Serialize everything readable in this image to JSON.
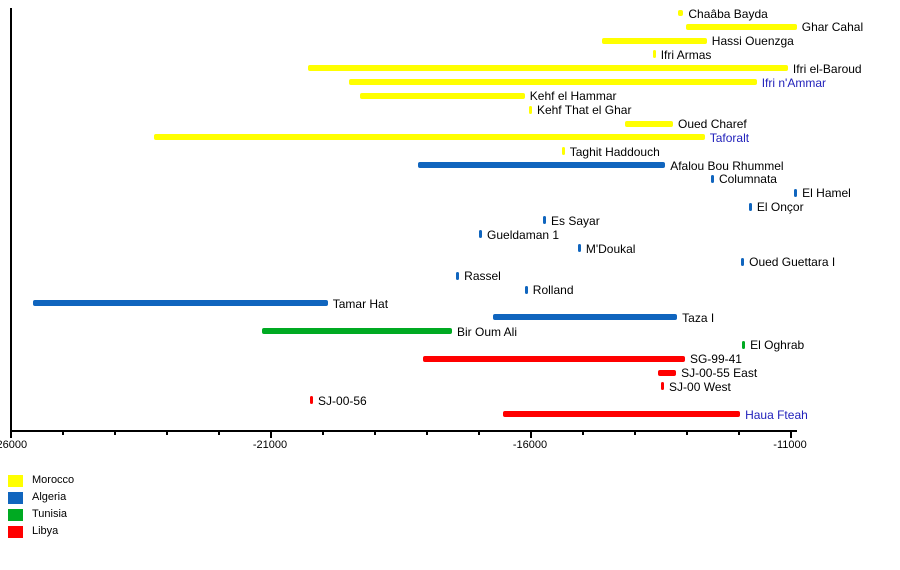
{
  "chart_data": {
    "type": "bar",
    "orientation": "horizontal-range-timeline",
    "title": "",
    "xlabel": "",
    "ylabel": "",
    "grid": false,
    "x_axis": {
      "min": -26000,
      "max": -11000,
      "minor_tick_step": 1000,
      "major_tick_step": 5000,
      "tick_labels": [
        "-26000",
        "-21000",
        "-16000",
        "-11000"
      ]
    },
    "legend": [
      {
        "label": "Morocco",
        "color": "#FFFF00"
      },
      {
        "label": "Algeria",
        "color": "#1065BE"
      },
      {
        "label": "Tunisia",
        "color": "#00AA22"
      },
      {
        "label": "Libya",
        "color": "#FF0000"
      }
    ],
    "legend_position": "bottom-left",
    "highlight_label_color": "#2222BB",
    "default_label_color": "#000000",
    "sites": [
      {
        "name": "Chaâba Bayda",
        "country": "Morocco",
        "start": -13150,
        "end": -13050
      },
      {
        "name": "Ghar Cahal",
        "country": "Morocco",
        "start": -13000,
        "end": -10870
      },
      {
        "name": "Hassi Ouenzga",
        "country": "Morocco",
        "start": -14620,
        "end": -12600
      },
      {
        "name": "Ifri Armas",
        "country": "Morocco",
        "start": -13640,
        "end": -13590
      },
      {
        "name": "Ifri el-Baroud",
        "country": "Morocco",
        "start": -20270,
        "end": -11040
      },
      {
        "name": "Ifri n'Ammar",
        "country": "Morocco",
        "start": -19480,
        "end": -11640,
        "highlight": true
      },
      {
        "name": "Kehf el Hammar",
        "country": "Morocco",
        "start": -19270,
        "end": -16100
      },
      {
        "name": "Kehf That el Ghar",
        "country": "Morocco",
        "start": -16020,
        "end": -15980
      },
      {
        "name": "Oued Charef",
        "country": "Morocco",
        "start": -14170,
        "end": -13250
      },
      {
        "name": "Taforalt",
        "country": "Morocco",
        "start": -23230,
        "end": -12640,
        "highlight": true
      },
      {
        "name": "Taghit Haddouch",
        "country": "Morocco",
        "start": -15390,
        "end": -15350
      },
      {
        "name": "Afalou Bou Rhummel",
        "country": "Algeria",
        "start": -18150,
        "end": -13400
      },
      {
        "name": "Columnata",
        "country": "Algeria",
        "start": -12520,
        "end": -12480
      },
      {
        "name": "El Hamel",
        "country": "Algeria",
        "start": -10920,
        "end": -10880
      },
      {
        "name": "El Onçor",
        "country": "Algeria",
        "start": -11790,
        "end": -11750
      },
      {
        "name": "Es Sayar",
        "country": "Algeria",
        "start": -15750,
        "end": -15710
      },
      {
        "name": "Gueldaman 1",
        "country": "Algeria",
        "start": -16980,
        "end": -16940
      },
      {
        "name": "M'Doukal",
        "country": "Algeria",
        "start": -15080,
        "end": -15040
      },
      {
        "name": "Oued Guettara I",
        "country": "Algeria",
        "start": -11940,
        "end": -11900
      },
      {
        "name": "Rassel",
        "country": "Algeria",
        "start": -17420,
        "end": -17380
      },
      {
        "name": "Rolland",
        "country": "Algeria",
        "start": -16100,
        "end": -16060
      },
      {
        "name": "Tamar Hat",
        "country": "Algeria",
        "start": -25560,
        "end": -19890
      },
      {
        "name": "Taza I",
        "country": "Algeria",
        "start": -16710,
        "end": -13170
      },
      {
        "name": "Bir Oum Ali",
        "country": "Tunisia",
        "start": -21150,
        "end": -17500
      },
      {
        "name": "El Oghrab",
        "country": "Tunisia",
        "start": -11920,
        "end": -11880
      },
      {
        "name": "SG-99-41",
        "country": "Libya",
        "start": -18050,
        "end": -13020
      },
      {
        "name": "SJ-00-55 East",
        "country": "Libya",
        "start": -13540,
        "end": -13190
      },
      {
        "name": "SJ-00 West",
        "country": "Libya",
        "start": -13480,
        "end": -13440
      },
      {
        "name": "SJ-00-56",
        "country": "Libya",
        "start": -20230,
        "end": -20190
      },
      {
        "name": "Haua Fteah",
        "country": "Libya",
        "start": -16520,
        "end": -11960,
        "highlight": true
      }
    ]
  }
}
